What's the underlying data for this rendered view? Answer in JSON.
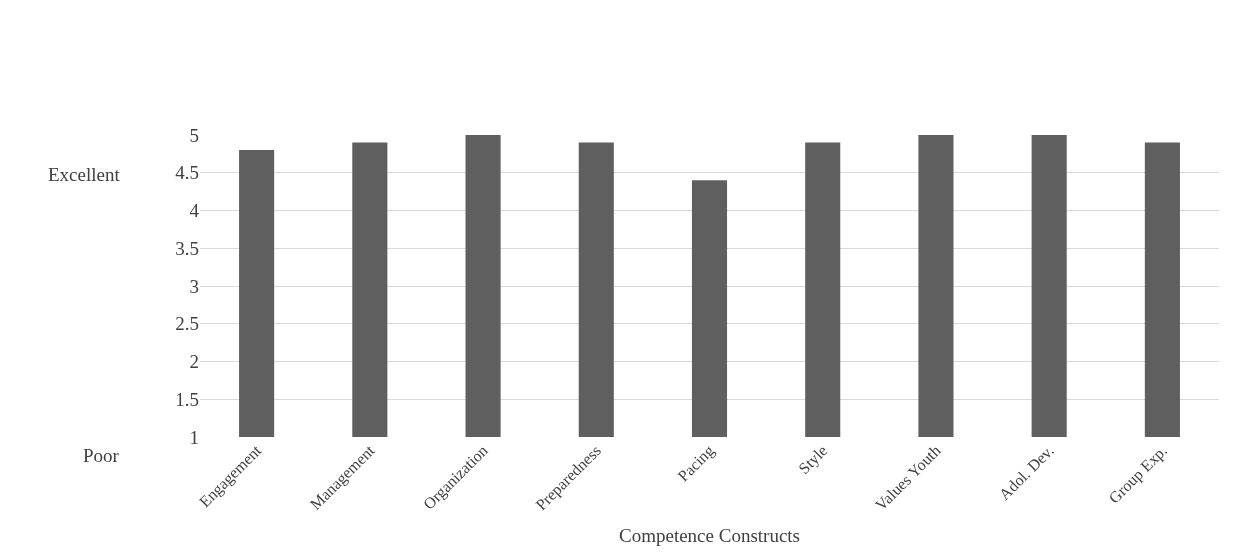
{
  "chart_data": {
    "type": "bar",
    "xlabel": "Competence Constructs",
    "categories": [
      "Engagement",
      "Management",
      "Organization",
      "Preparedness",
      "Pacing",
      "Style",
      "Values Youth",
      "Adol. Dev.",
      "Group Exp."
    ],
    "values": [
      4.8,
      4.9,
      5.0,
      4.9,
      4.4,
      4.9,
      5.0,
      5.0,
      4.9
    ],
    "color": "#5f5f5f",
    "ylim": [
      1,
      5
    ],
    "yticks": [
      1,
      1.5,
      2,
      2.5,
      3,
      3.5,
      4,
      4.5,
      5
    ],
    "grid": "y",
    "annotations": [
      "Excellent",
      "Poor"
    ]
  }
}
